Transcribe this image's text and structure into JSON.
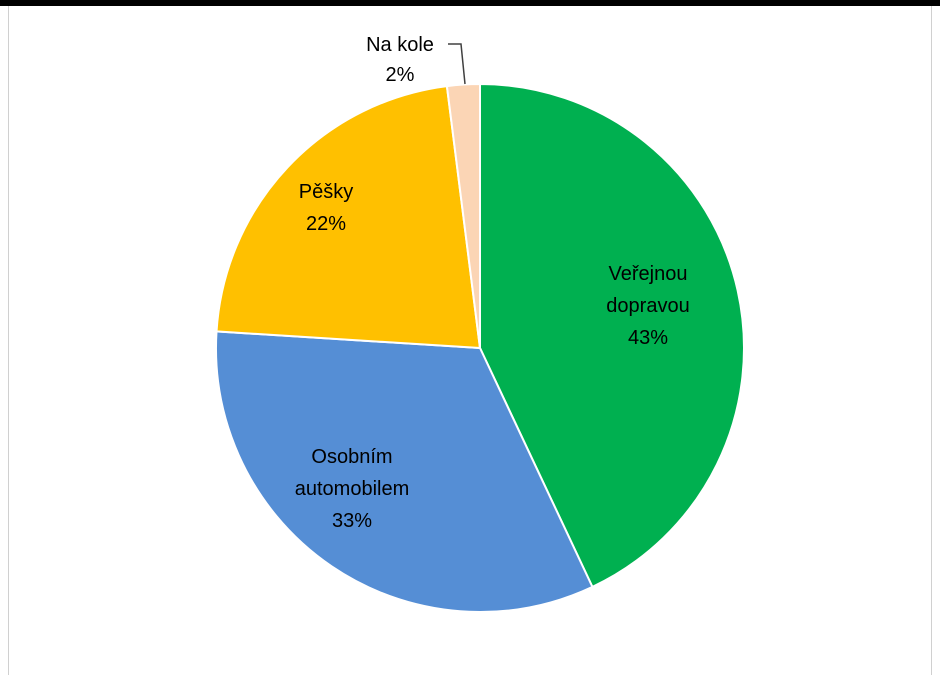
{
  "chart_data": {
    "type": "pie",
    "slices": [
      {
        "name": "Veřejnou dopravou",
        "value": 43,
        "label_lines": [
          "Veřejnou",
          "dopravou",
          "43%"
        ],
        "color": "#00b050"
      },
      {
        "name": "Osobním automobilem",
        "value": 33,
        "label_lines": [
          "Osobním",
          "automobilem",
          "33%"
        ],
        "color": "#558ed5"
      },
      {
        "name": "Pěšky",
        "value": 22,
        "label_lines": [
          "Pěšky",
          "22%"
        ],
        "color": "#ffc000"
      },
      {
        "name": "Na kole",
        "value": 2,
        "label_lines": [
          "Na kole",
          "2%"
        ],
        "color": "#fbd5b5"
      }
    ],
    "start": "12 o'clock",
    "direction": "clockwise",
    "legend": "none",
    "labels": "data labels with category name and percent"
  }
}
